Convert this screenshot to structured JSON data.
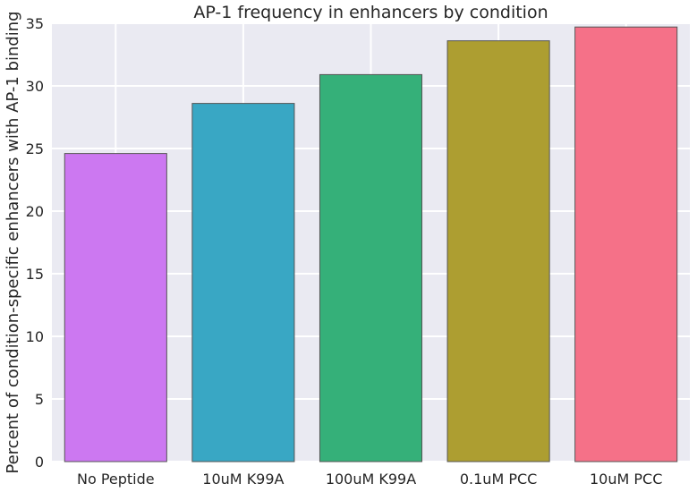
{
  "chart_data": {
    "type": "bar",
    "title": "AP-1 frequency in enhancers by condition",
    "xlabel": "",
    "ylabel": "Percent of condition-specific enhancers with AP-1 binding",
    "categories": [
      "No Peptide",
      "10uM K99A",
      "100uM K99A",
      "0.1uM PCC",
      "10uM PCC"
    ],
    "values": [
      24.6,
      28.6,
      30.9,
      33.6,
      34.7
    ],
    "colors": [
      "#cc78f1",
      "#39a7c4",
      "#35b079",
      "#ad9e31",
      "#f57188"
    ],
    "ylim": [
      0,
      35
    ],
    "yticks": [
      "0",
      "5",
      "10",
      "15",
      "20",
      "25",
      "30",
      "35"
    ],
    "ytick_values": [
      0,
      5,
      10,
      15,
      20,
      25,
      30,
      35
    ],
    "grid": true,
    "background": "#eaeaf2"
  }
}
